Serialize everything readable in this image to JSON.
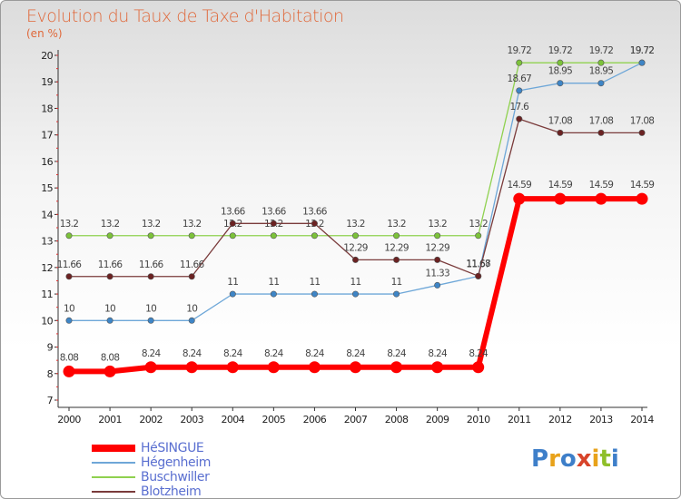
{
  "title": "Evolution du Taux de Taxe d'Habitation",
  "subtitle": "(en %)",
  "logo": {
    "text": "Proxiti",
    "colors": [
      "#3e7fc9",
      "#e8a21a",
      "#3e7fc9",
      "#d8442a",
      "#e8a21a",
      "#8fbf2a",
      "#3e7fc9"
    ]
  },
  "chart_data": {
    "type": "line",
    "x": [
      "2000",
      "2001",
      "2002",
      "2003",
      "2004",
      "2005",
      "2006",
      "2007",
      "2008",
      "2009",
      "2010",
      "2011",
      "2012",
      "2013",
      "2014"
    ],
    "ylim": [
      7,
      20
    ],
    "yticks": [
      7,
      8,
      9,
      10,
      11,
      12,
      13,
      14,
      15,
      16,
      17,
      18,
      19,
      20
    ],
    "grid": false,
    "legend": "bottom-left",
    "series": [
      {
        "name": "Buschwiller",
        "color": "#8fd14f",
        "marker": "#7cc23a",
        "values": [
          13.2,
          13.2,
          13.2,
          13.2,
          13.2,
          13.2,
          13.2,
          13.2,
          13.2,
          13.2,
          13.2,
          19.72,
          19.72,
          19.72,
          19.72
        ],
        "labels": [
          "13.2",
          "13.2",
          "13.2",
          "13.2",
          "13.2",
          "13.2",
          "13.2",
          "13.2",
          "13.2",
          "13.2",
          "13.2",
          "19.72",
          "19.72",
          "19.72",
          "19.72"
        ]
      },
      {
        "name": "Hégenheim",
        "color": "#6ea7d8",
        "marker": "#3e85c6",
        "values": [
          10,
          10,
          10,
          10,
          11,
          11,
          11,
          11,
          11,
          11.33,
          11.67,
          18.67,
          18.95,
          18.95,
          19.72
        ],
        "labels": [
          "10",
          "10",
          "10",
          "10",
          "11",
          "11",
          "11",
          "11",
          "11",
          "11.33",
          "11.67",
          "18.67",
          "18.95",
          "18.95",
          "19.72"
        ]
      },
      {
        "name": "Blotzheim",
        "color": "#7a3b3b",
        "marker": "#6b2222",
        "values": [
          11.66,
          11.66,
          11.66,
          11.66,
          13.66,
          13.66,
          13.66,
          12.29,
          12.29,
          12.29,
          11.68,
          17.6,
          17.08,
          17.08,
          17.08
        ],
        "labels": [
          "11.66",
          "11.66",
          "11.66",
          "11.66",
          "13.66",
          "13.66",
          "13.66",
          "12.29",
          "12.29",
          "12.29",
          "11.68",
          "17.6",
          "17.08",
          "17.08",
          "17.08"
        ]
      },
      {
        "name": "HéSINGUE",
        "color": "#ff0000",
        "marker": "#ff0000",
        "values": [
          8.08,
          8.08,
          8.24,
          8.24,
          8.24,
          8.24,
          8.24,
          8.24,
          8.24,
          8.24,
          8.24,
          14.59,
          14.59,
          14.59,
          14.59
        ],
        "labels": [
          "8.08",
          "8.08",
          "8.24",
          "8.24",
          "8.24",
          "8.24",
          "8.24",
          "8.24",
          "8.24",
          "8.24",
          "8.24",
          "14.59",
          "14.59",
          "14.59",
          "14.59"
        ]
      }
    ]
  },
  "legend_items": [
    {
      "name": "HéSINGUE",
      "color": "#ff0000",
      "thick": true
    },
    {
      "name": "Hégenheim",
      "color": "#6ea7d8",
      "thick": false
    },
    {
      "name": "Buschwiller",
      "color": "#8fd14f",
      "thick": false
    },
    {
      "name": "Blotzheim",
      "color": "#7a3b3b",
      "thick": false
    }
  ]
}
